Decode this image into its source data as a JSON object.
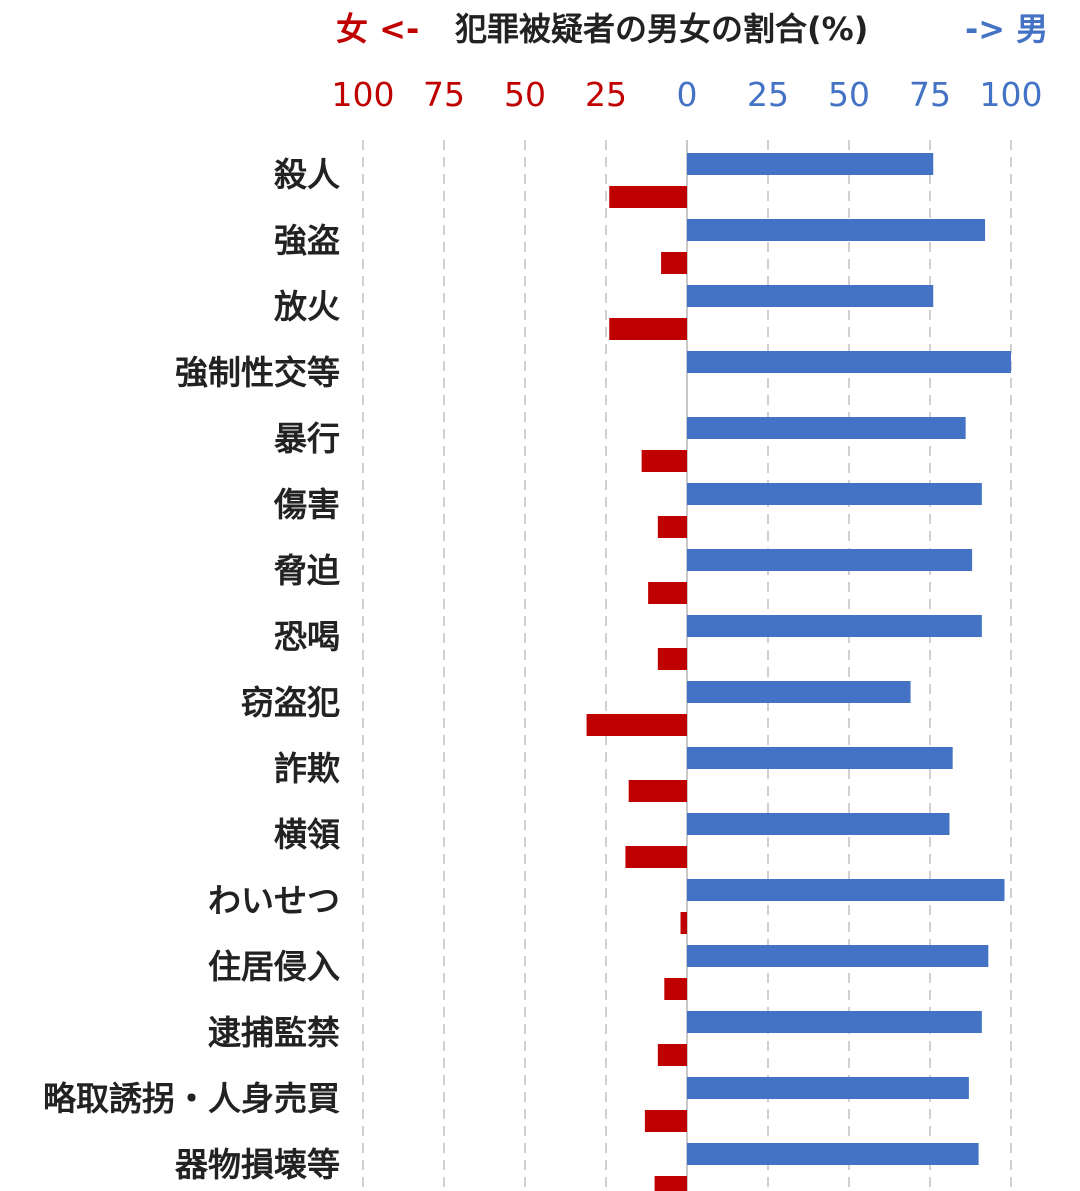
{
  "header": {
    "title": "犯罪被疑者の男女の割合(%)",
    "female_label": "女 <-",
    "male_label": "-> 男"
  },
  "colors": {
    "female": "#c00000",
    "male": "#4472c4",
    "text": "#222222",
    "grid": "#d0d0d0"
  },
  "chart_data": {
    "type": "bar",
    "orientation": "horizontal-diverging",
    "title": "犯罪被疑者の男女の割合(%)",
    "xlim": [
      -100,
      100
    ],
    "ticks_female": [
      "100",
      "75",
      "50",
      "25"
    ],
    "ticks_male": [
      "0",
      "25",
      "50",
      "75",
      "100"
    ],
    "grid": true,
    "categories": [
      "殺人",
      "強盗",
      "放火",
      "強制性交等",
      "暴行",
      "傷害",
      "脅迫",
      "恐喝",
      "窃盗犯",
      "詐欺",
      "横領",
      "わいせつ",
      "住居侵入",
      "逮捕監禁",
      "略取誘拐・人身売買",
      "器物損壊等"
    ],
    "series": [
      {
        "name": "男",
        "values": [
          76,
          92,
          76,
          100,
          86,
          91,
          88,
          91,
          69,
          82,
          81,
          98,
          93,
          91,
          87,
          90
        ]
      },
      {
        "name": "女",
        "values": [
          24,
          8,
          24,
          0,
          14,
          9,
          12,
          9,
          31,
          18,
          19,
          2,
          7,
          9,
          13,
          10
        ]
      }
    ]
  }
}
